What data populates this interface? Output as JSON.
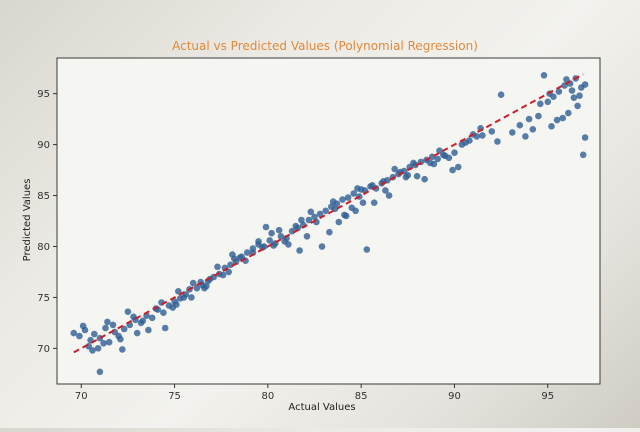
{
  "chart_data": {
    "type": "scatter",
    "title": "Actual vs Predicted Values (Polynomial Regression)",
    "xlabel": "Actual Values",
    "ylabel": "Predicted Values",
    "xlim": [
      68.7,
      97.8
    ],
    "ylim": [
      66.5,
      98.5
    ],
    "xticks": [
      70,
      75,
      80,
      85,
      90,
      95
    ],
    "yticks": [
      70,
      75,
      80,
      85,
      90,
      95
    ],
    "grid": false,
    "legend": "none",
    "colors": {
      "points": "#2f5f93",
      "reference_line": "#c8202a",
      "title": "#e08a3c"
    },
    "series": [
      {
        "kind": "points",
        "x": [
          69.6,
          69.9,
          70.2,
          70.5,
          70.7,
          71.0,
          71.3,
          71.5,
          71.8,
          72.0,
          72.3,
          72.6,
          72.9,
          73.2,
          73.5,
          73.8,
          74.1,
          74.4,
          74.7,
          75.0,
          75.3,
          75.6,
          75.9,
          76.2,
          76.5,
          76.8,
          77.1,
          77.4,
          77.7,
          78.0,
          78.3,
          78.6,
          78.9,
          79.2,
          79.5,
          79.8,
          80.1,
          80.4,
          80.7,
          81.0,
          81.3,
          81.6,
          81.9,
          82.2,
          82.5,
          82.8,
          83.1,
          83.4,
          83.7,
          84.0,
          84.3,
          84.6,
          84.9,
          85.2,
          85.5,
          85.8,
          86.1,
          86.4,
          86.7,
          87.0,
          87.3,
          87.6,
          87.9,
          88.2,
          88.5,
          88.8,
          89.1,
          89.4,
          89.7,
          90.0,
          90.4,
          90.8,
          91.2,
          92.0,
          92.5,
          93.5,
          94.0,
          94.5,
          95.0,
          95.3,
          95.6,
          95.9,
          96.2,
          96.5,
          96.8,
          97.0,
          70.4,
          71.2,
          72.2,
          73.6,
          74.9,
          75.8,
          76.4,
          77.6,
          78.8,
          79.5,
          80.6,
          81.7,
          82.9,
          83.8,
          84.5,
          85.3,
          86.3,
          87.5,
          88.7,
          89.9,
          91.0,
          93.1,
          94.8,
          95.5,
          96.1,
          96.7,
          70.9,
          71.7,
          72.5,
          74.0,
          75.5,
          76.9,
          78.1,
          79.9,
          81.1,
          82.3,
          83.3,
          84.2,
          85.0,
          85.7,
          86.8,
          88.0,
          89.2,
          90.2,
          91.5,
          94.2,
          95.1,
          96.4,
          96.9,
          70.1,
          71.4,
          73.0,
          74.3,
          75.2,
          76.7,
          77.3,
          78.5,
          79.2,
          80.2,
          81.5,
          82.1,
          83.6,
          84.8,
          85.1,
          86.5,
          87.8,
          89.5,
          92.3,
          95.8,
          96.6,
          97.0,
          71.0,
          72.8,
          74.5,
          76.0,
          77.9,
          79.7,
          80.9,
          82.6,
          84.1,
          85.6,
          87.1,
          88.4,
          90.6,
          93.8,
          94.6,
          96.3,
          70.6,
          72.1,
          73.3,
          75.1,
          76.6,
          78.2,
          80.3,
          81.8,
          83.5,
          84.7,
          86.2,
          87.4,
          88.9,
          91.4,
          95.2,
          96.0
        ],
        "y": [
          71.5,
          71.2,
          71.8,
          70.8,
          71.4,
          71.0,
          72.0,
          70.6,
          71.6,
          71.2,
          71.9,
          72.3,
          72.8,
          72.5,
          73.2,
          73.0,
          73.8,
          73.5,
          74.2,
          74.6,
          74.9,
          75.3,
          75.0,
          75.9,
          76.2,
          76.6,
          77.0,
          77.3,
          77.9,
          78.2,
          78.5,
          79.0,
          79.4,
          79.8,
          80.2,
          80.0,
          80.6,
          80.3,
          81.0,
          80.8,
          81.5,
          81.8,
          82.1,
          82.6,
          82.9,
          83.2,
          83.5,
          83.9,
          84.2,
          84.6,
          84.8,
          85.2,
          84.9,
          85.5,
          85.9,
          85.7,
          86.2,
          86.5,
          86.8,
          87.1,
          87.4,
          87.8,
          88.0,
          88.3,
          88.5,
          88.8,
          88.6,
          89.0,
          88.7,
          89.2,
          90.0,
          90.4,
          90.8,
          91.3,
          94.9,
          91.9,
          92.5,
          92.8,
          94.2,
          94.7,
          95.2,
          95.8,
          96.0,
          96.5,
          95.6,
          95.9,
          70.2,
          70.5,
          69.9,
          71.8,
          74.0,
          75.8,
          76.5,
          77.2,
          78.6,
          80.5,
          81.6,
          79.6,
          80.0,
          82.4,
          83.8,
          79.7,
          85.5,
          87.0,
          88.2,
          87.5,
          91.0,
          91.2,
          96.8,
          92.4,
          93.1,
          94.8,
          70.0,
          72.3,
          73.6,
          73.9,
          75.0,
          76.8,
          79.2,
          81.9,
          80.2,
          83.4,
          81.4,
          83.0,
          85.6,
          84.3,
          87.6,
          86.9,
          89.4,
          87.8,
          90.9,
          91.5,
          95.0,
          94.6,
          89.0,
          72.2,
          72.6,
          71.5,
          74.5,
          75.6,
          76.1,
          78.0,
          78.9,
          79.4,
          81.3,
          82.0,
          81.0,
          83.7,
          85.7,
          84.3,
          85.0,
          88.2,
          88.9,
          90.3,
          92.6,
          93.8,
          90.7,
          67.7,
          73.1,
          72.0,
          76.4,
          77.5,
          79.9,
          80.5,
          82.4,
          83.1,
          86.0,
          87.3,
          86.6,
          90.2,
          90.8,
          94.0,
          95.3,
          69.8,
          70.9,
          72.7,
          74.3,
          75.9,
          78.8,
          80.1,
          82.6,
          84.4,
          83.5,
          86.4,
          86.8,
          88.1,
          91.6,
          91.8,
          96.4
        ]
      },
      {
        "kind": "reference-line",
        "x": [
          69.6,
          96.9
        ],
        "y": [
          69.6,
          96.9
        ]
      }
    ]
  }
}
